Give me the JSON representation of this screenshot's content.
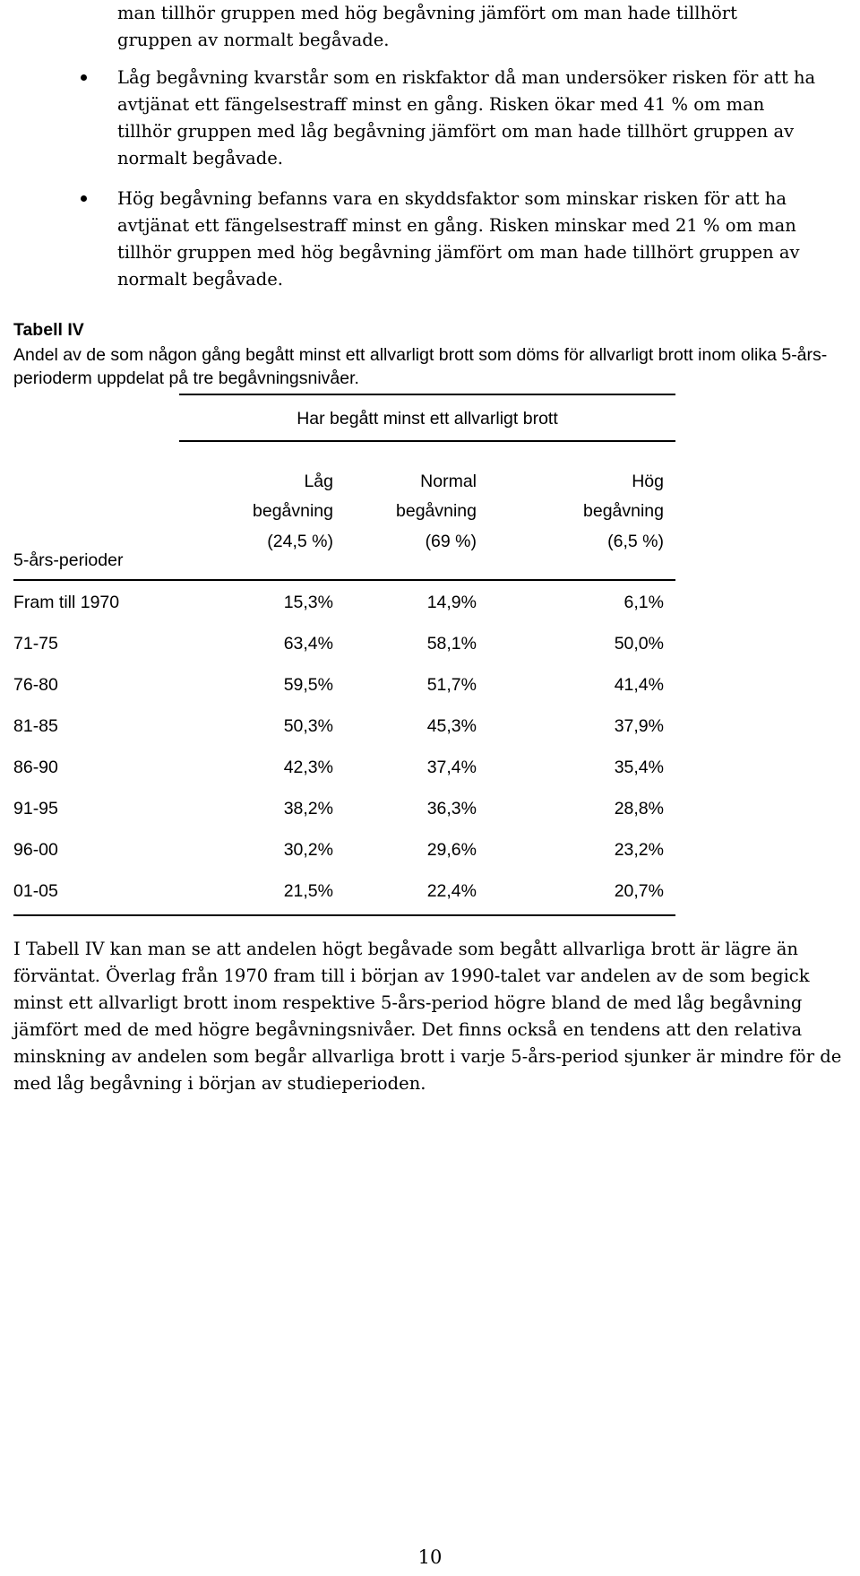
{
  "intro_continuation": "man tillhör gruppen med hög begåvning jämfört om man hade tillhört gruppen av normalt begåvade.",
  "bullets": [
    {
      "text": "Låg begåvning kvarstår som en riskfaktor då man undersöker risken för att ha avtjänat ett fängelsestraff minst en gång. Risken ökar med 41 % om man tillhör gruppen med låg begåvning jämfört om man hade tillhört gruppen av normalt begåvade."
    },
    {
      "text": "Hög begåvning befanns vara en skyddsfaktor som minskar risken för att ha avtjänat ett fängelsestraff minst en gång. Risken minskar med 21 % om man tillhör gruppen med hög begåvning jämfört om man hade tillhört gruppen av normalt begåvade."
    }
  ],
  "table": {
    "title": "Tabell IV",
    "caption": "Andel av de som någon gång begått minst ett allvarligt brott som döms för allvarligt brott inom olika 5-års-perioderm uppdelat på tre begåvningsnivåer.",
    "group_header": "Har begått minst ett allvarligt brott",
    "row_header": "5-års-perioder",
    "columns": [
      {
        "line1": "Låg",
        "line2": "begåvning",
        "line3": "(24,5 %)"
      },
      {
        "line1": "Normal",
        "line2": "begåvning",
        "line3": "(69 %)"
      },
      {
        "line1": "Hög",
        "line2": "begåvning",
        "line3": "(6,5 %)"
      }
    ],
    "rows": [
      {
        "period": "Fram till 1970",
        "values": [
          "15,3%",
          "14,9%",
          "6,1%"
        ]
      },
      {
        "period": "71-75",
        "values": [
          "63,4%",
          "58,1%",
          "50,0%"
        ]
      },
      {
        "period": "76-80",
        "values": [
          "59,5%",
          "51,7%",
          "41,4%"
        ]
      },
      {
        "period": "81-85",
        "values": [
          "50,3%",
          "45,3%",
          "37,9%"
        ]
      },
      {
        "period": "86-90",
        "values": [
          "42,3%",
          "37,4%",
          "35,4%"
        ]
      },
      {
        "period": "91-95",
        "values": [
          "38,2%",
          "36,3%",
          "28,8%"
        ]
      },
      {
        "period": "96-00",
        "values": [
          "30,2%",
          "29,6%",
          "23,2%"
        ]
      },
      {
        "period": "01-05",
        "values": [
          "21,5%",
          "22,4%",
          "20,7%"
        ]
      }
    ]
  },
  "summary": "I Tabell IV kan man se att andelen högt begåvade som begått allvarliga brott är lägre än förväntat. Överlag från 1970 fram till i början av 1990-talet var andelen av de som begick minst ett allvarligt brott inom respektive 5-års-period högre bland de med låg begåvning jämfört med de med högre begåvningsnivåer. Det finns också en tendens att den relativa minskning av andelen som begår allvarliga brott i varje 5-års-period sjunker är mindre för de med låg begåvning i början av studieperioden.",
  "page_number": "10"
}
